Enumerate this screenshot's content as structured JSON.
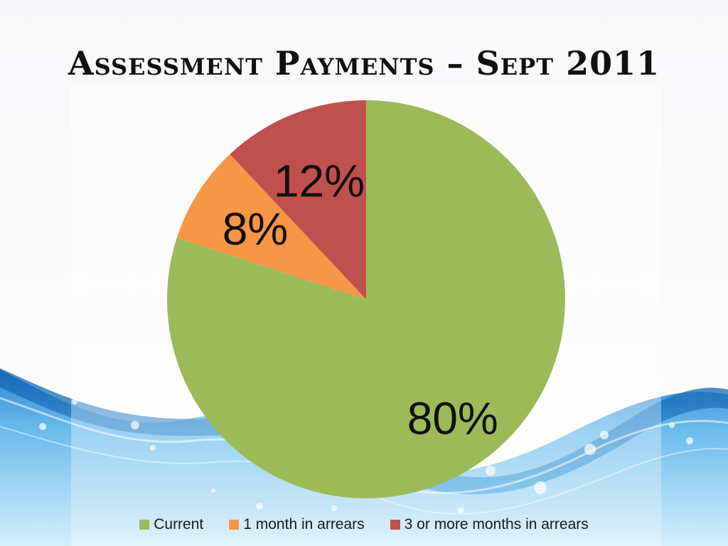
{
  "chart_data": {
    "type": "pie",
    "title": "Assessment Payments – Sept 2011",
    "categories": [
      "Current",
      "1 month in arrears",
      "3 or more months in arrears"
    ],
    "values": [
      80,
      8,
      12
    ],
    "data_labels": [
      "80%",
      "8%",
      "12%"
    ],
    "colors": [
      "#9bbb59",
      "#f79646",
      "#c0504d"
    ],
    "start_angle_deg": 0,
    "direction": "clockwise",
    "legend_position": "bottom"
  },
  "background": {
    "theme": "water-waves",
    "colors": [
      "#1f78c8",
      "#5fb4ea",
      "#bfe4f8"
    ]
  }
}
